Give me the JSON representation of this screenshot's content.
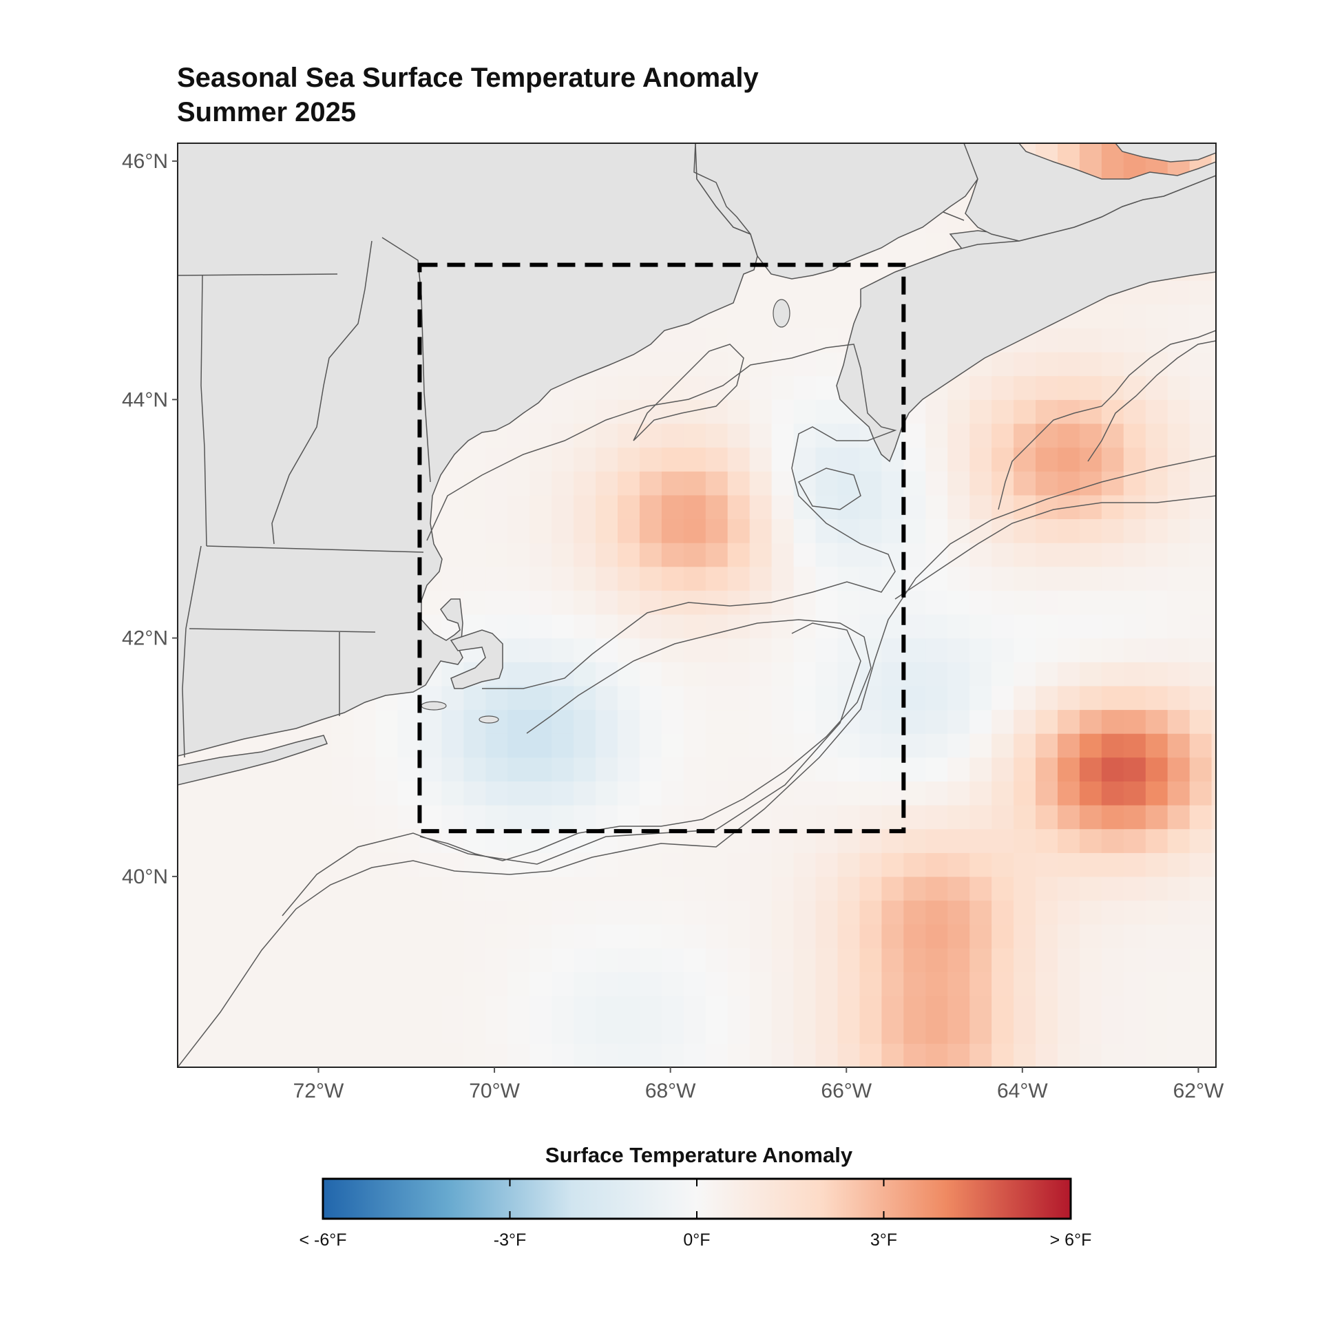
{
  "title": {
    "line1": "Seasonal Sea Surface Temperature Anomaly",
    "line2": "Summer 2025"
  },
  "map": {
    "lon_range": [
      -73.6,
      -61.8
    ],
    "lat_range": [
      38.4,
      46.15
    ],
    "lat_ticks": [
      {
        "value": 46,
        "label": "46°N"
      },
      {
        "value": 44,
        "label": "44°N"
      },
      {
        "value": 42,
        "label": "42°N"
      },
      {
        "value": 40,
        "label": "40°N"
      }
    ],
    "lon_ticks": [
      {
        "value": -72,
        "label": "72°W"
      },
      {
        "value": -70,
        "label": "70°W"
      },
      {
        "value": -68,
        "label": "68°W"
      },
      {
        "value": -66,
        "label": "66°W"
      },
      {
        "value": -64,
        "label": "64°W"
      },
      {
        "value": -62,
        "label": "62°W"
      }
    ],
    "region_box": {
      "lon": [
        -70.85,
        -65.35
      ],
      "lat": [
        40.38,
        45.13
      ]
    },
    "land_color": "#e3e3e3",
    "coast_color": "#555555",
    "anomaly_hotspots_degF": [
      {
        "lon": -67.7,
        "lat": 43.0,
        "value": 3.2
      },
      {
        "lon": -62.9,
        "lat": 40.9,
        "value": 4.6
      },
      {
        "lon": -63.5,
        "lat": 43.5,
        "value": 3.0
      },
      {
        "lon": -65.0,
        "lat": 39.7,
        "value": 2.6
      },
      {
        "lon": -65.0,
        "lat": 38.6,
        "value": 2.5
      },
      {
        "lon": -69.6,
        "lat": 41.2,
        "value": -2.4
      },
      {
        "lon": -66.2,
        "lat": 43.2,
        "value": -1.8
      },
      {
        "lon": -65.2,
        "lat": 41.5,
        "value": -1.3
      },
      {
        "lon": -68.5,
        "lat": 38.8,
        "value": -0.8
      },
      {
        "lon": -63.1,
        "lat": 41.8,
        "value": -0.6
      },
      {
        "lon": -62.7,
        "lat": 46.0,
        "value": 3.2
      }
    ]
  },
  "legend": {
    "title": "Surface Temperature Anomaly",
    "range_degF": [
      -6,
      6
    ],
    "colors": [
      "#2166ac",
      "#67a9cf",
      "#d1e5f0",
      "#f7f7f7",
      "#fddbc7",
      "#ef8a62",
      "#b2182b"
    ],
    "ticks": [
      {
        "value": -6,
        "label": "< -6°F"
      },
      {
        "value": -3,
        "label": "-3°F"
      },
      {
        "value": 0,
        "label": "0°F"
      },
      {
        "value": 3,
        "label": "3°F"
      },
      {
        "value": 6,
        "label": "> 6°F"
      }
    ]
  }
}
